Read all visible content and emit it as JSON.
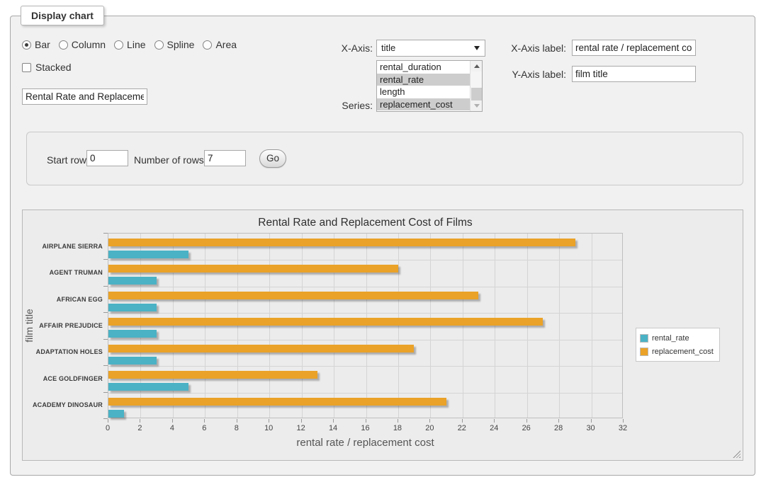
{
  "fieldset": {
    "legend": "Display chart"
  },
  "controls": {
    "chart_types": [
      {
        "label": "Bar",
        "selected": true
      },
      {
        "label": "Column",
        "selected": false
      },
      {
        "label": "Line",
        "selected": false
      },
      {
        "label": "Spline",
        "selected": false
      },
      {
        "label": "Area",
        "selected": false
      }
    ],
    "stacked": {
      "label": "Stacked",
      "checked": false
    },
    "title_value": "Rental Rate and Replacement Cost of Films",
    "x_axis": {
      "label": "X-Axis:",
      "selected": "title"
    },
    "series_picker": {
      "label": "Series:",
      "options": [
        {
          "label": "rental_duration",
          "selected": false
        },
        {
          "label": "rental_rate",
          "selected": true
        },
        {
          "label": "length",
          "selected": false
        },
        {
          "label": "replacement_cost",
          "selected": true
        }
      ]
    },
    "x_axis_label": {
      "label": "X-Axis label:",
      "value": "rental rate / replacement cost"
    },
    "y_axis_label": {
      "label": "Y-Axis label:",
      "value": "film title"
    }
  },
  "row_controls": {
    "start_row_label": "Start row:",
    "start_row_value": "0",
    "num_rows_label": "Number of rows:",
    "num_rows_value": "7",
    "go_label": "Go"
  },
  "chart_data": {
    "type": "bar",
    "orientation": "horizontal",
    "title": "Rental Rate and Replacement Cost of Films",
    "xlabel": "rental rate / replacement cost",
    "ylabel": "film title",
    "categories": [
      "AIRPLANE SIERRA",
      "AGENT TRUMAN",
      "AFRICAN EGG",
      "AFFAIR PREJUDICE",
      "ADAPTATION HOLES",
      "ACE GOLDFINGER",
      "ACADEMY DINOSAUR"
    ],
    "series": [
      {
        "name": "rental_rate",
        "color": "#4bb2c5",
        "values": [
          4.99,
          2.99,
          2.99,
          2.99,
          2.99,
          4.99,
          0.99
        ]
      },
      {
        "name": "replacement_cost",
        "color": "#eaa228",
        "values": [
          28.99,
          17.99,
          22.99,
          26.99,
          18.99,
          12.99,
          20.99
        ]
      }
    ],
    "xlim": [
      0,
      32
    ],
    "xtick_step": 2,
    "grid": true,
    "legend_position": "right"
  }
}
